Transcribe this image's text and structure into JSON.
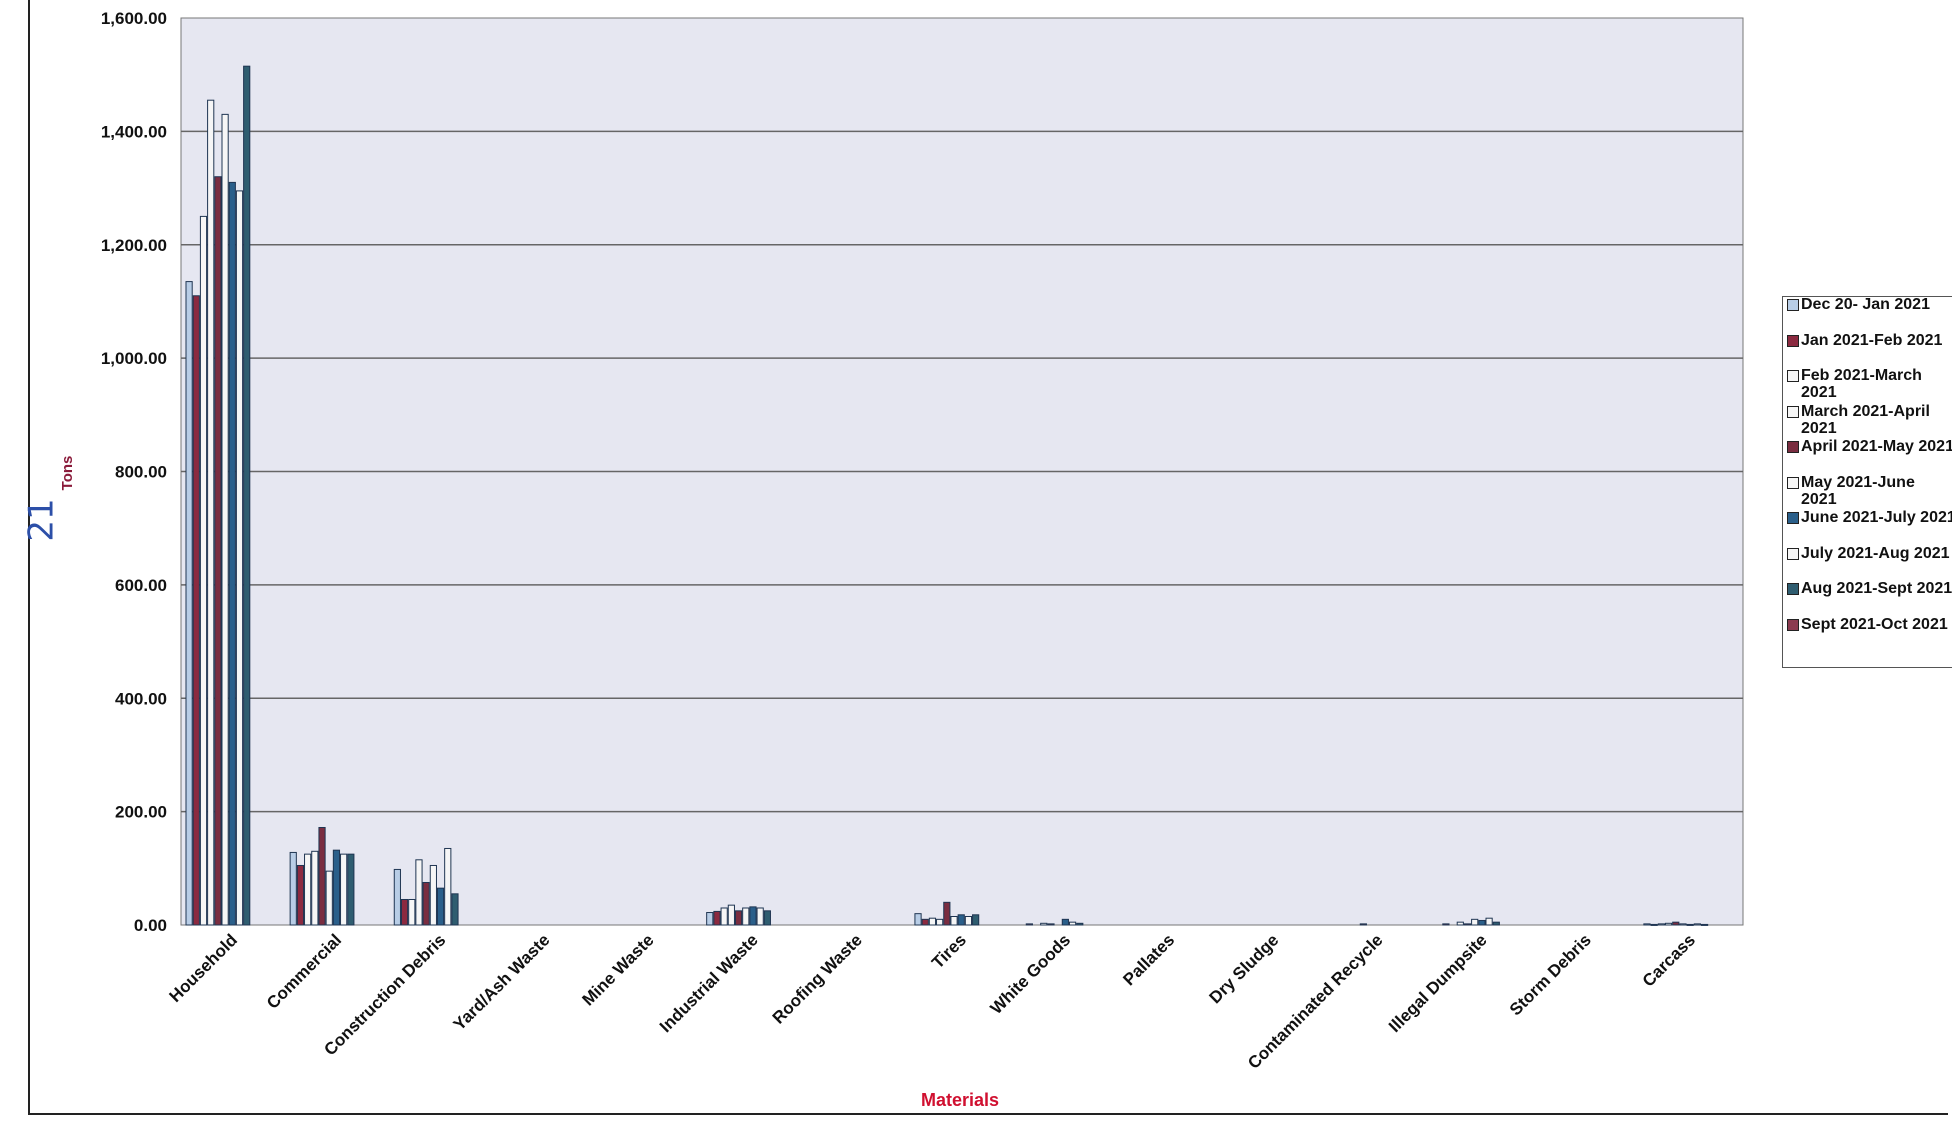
{
  "handwritten_note": "21",
  "chart_data": {
    "type": "bar",
    "title": "",
    "xlabel": "Materials",
    "ylabel": "Tons",
    "ylim": [
      0,
      1600
    ],
    "yticks": [
      "1,600.00",
      "1,400.00",
      "1,200.00",
      "1,000.00",
      "800.00",
      "600.00",
      "400.00",
      "200.00",
      "0.00"
    ],
    "ytick_values": [
      1600,
      1400,
      1200,
      1000,
      800,
      600,
      400,
      200,
      0
    ],
    "grid": true,
    "legend_position": "right",
    "categories": [
      "Household",
      "Commercial",
      "Construction Debris",
      "Yard/Ash Waste",
      "Mine Waste",
      "Industrial Waste",
      "Roofing Waste",
      "Tires",
      "White Goods",
      "Pallates",
      "Dry Sludge",
      "Contaminated Recycle",
      "Illegal Dumpsite",
      "Storm Debris",
      "Carcass"
    ],
    "series": [
      {
        "name": "Dec 20- Jan 2021",
        "color": "#b8cde6",
        "values": [
          1135,
          128,
          98,
          0,
          0,
          22,
          0,
          20,
          0,
          0,
          0,
          0,
          0,
          0,
          2
        ]
      },
      {
        "name": "Jan 2021-Feb 2021",
        "color": "#8b2a40",
        "values": [
          1110,
          105,
          45,
          0,
          0,
          24,
          0,
          10,
          2,
          0,
          0,
          0,
          2,
          0,
          1
        ]
      },
      {
        "name": "Feb 2021-March\n2021",
        "color": "#f6f6f6",
        "values": [
          1250,
          125,
          45,
          0,
          0,
          30,
          0,
          12,
          0,
          0,
          0,
          0,
          0,
          0,
          2
        ]
      },
      {
        "name": "March 2021-April\n2021",
        "color": "#f6f6f6",
        "values": [
          1455,
          130,
          115,
          0,
          0,
          35,
          0,
          10,
          3,
          0,
          0,
          0,
          5,
          0,
          3
        ]
      },
      {
        "name": "April 2021-May 2021",
        "color": "#7a2d40",
        "values": [
          1320,
          172,
          75,
          0,
          0,
          25,
          0,
          40,
          2,
          0,
          0,
          2,
          2,
          0,
          5
        ]
      },
      {
        "name": "May 2021-June\n2021",
        "color": "#f6f6f6",
        "values": [
          1430,
          95,
          105,
          0,
          0,
          30,
          0,
          15,
          0,
          0,
          0,
          0,
          10,
          0,
          2
        ]
      },
      {
        "name": "June 2021-July 2021",
        "color": "#2a5f8a",
        "values": [
          1310,
          132,
          65,
          0,
          0,
          32,
          0,
          18,
          10,
          0,
          0,
          0,
          8,
          0,
          1
        ]
      },
      {
        "name": "July 2021-Aug 2021",
        "color": "#f6f6f6",
        "values": [
          1295,
          125,
          135,
          0,
          0,
          30,
          0,
          15,
          5,
          0,
          0,
          0,
          12,
          0,
          2
        ]
      },
      {
        "name": "Aug 2021-Sept 2021",
        "color": "#2f5d70",
        "values": [
          1515,
          125,
          55,
          0,
          0,
          25,
          0,
          18,
          3,
          0,
          0,
          0,
          5,
          0,
          1
        ]
      },
      {
        "name": "Sept 2021-Oct 2021",
        "color": "#8b3b50",
        "values": [
          0,
          0,
          0,
          0,
          0,
          0,
          0,
          0,
          0,
          0,
          0,
          0,
          0,
          0,
          0
        ]
      }
    ]
  }
}
